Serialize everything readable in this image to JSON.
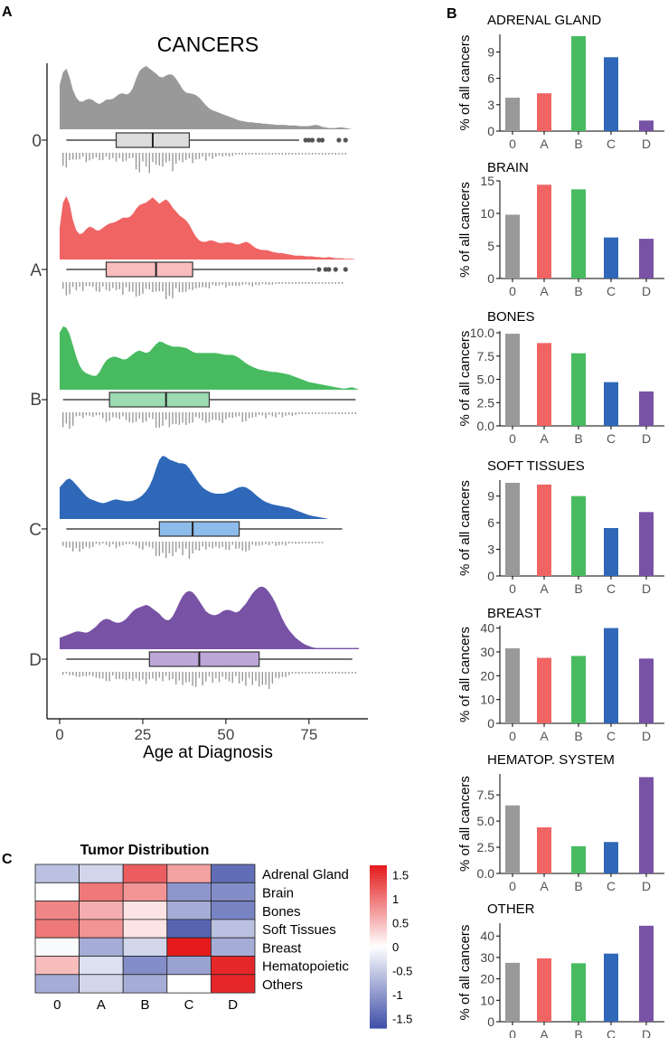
{
  "panels": {
    "a": "A",
    "b": "B",
    "c": "C"
  },
  "colors": {
    "0": "#999999",
    "A": "#F06464",
    "B": "#48BB60",
    "C": "#2F68B8",
    "D": "#7752A5",
    "box0": "#DCDCDC",
    "boxA": "#F9BDBD",
    "boxB": "#9DDBB3",
    "boxC": "#8DBBEA",
    "boxD": "#BDA6D8"
  },
  "chart_data": [
    {
      "id": "raincloud",
      "type": "raincloud",
      "title": "CANCERS",
      "xlabel": "Age at Diagnosis",
      "xlim": [
        -2,
        92
      ],
      "xticks": [
        0,
        25,
        50,
        75
      ],
      "groups": [
        "0",
        "A",
        "B",
        "C",
        "D"
      ],
      "density_x": [
        0,
        1,
        2,
        3,
        4,
        5,
        6,
        7,
        8,
        9,
        10,
        11,
        12,
        13,
        14,
        15,
        16,
        17,
        18,
        19,
        20,
        21,
        22,
        23,
        24,
        25,
        26,
        27,
        28,
        29,
        30,
        31,
        32,
        33,
        34,
        35,
        36,
        37,
        38,
        39,
        40,
        41,
        42,
        43,
        44,
        45,
        46,
        47,
        48,
        49,
        50,
        51,
        52,
        53,
        54,
        55,
        56,
        57,
        58,
        59,
        60,
        61,
        62,
        63,
        64,
        65,
        66,
        67,
        68,
        69,
        70,
        71,
        72,
        73,
        74,
        75,
        76,
        77,
        78,
        79,
        80,
        81,
        82,
        83,
        84,
        85,
        86,
        87,
        88,
        89,
        90
      ],
      "series": [
        {
          "name": "0",
          "outliers": [
            74,
            75,
            76,
            78,
            79,
            84,
            86
          ],
          "box": {
            "q1": 17,
            "median": 28,
            "q3": 39,
            "whisker_low": 2,
            "whisker_high": 72
          },
          "density": [
            0.7,
            0.9,
            0.96,
            0.82,
            0.62,
            0.5,
            0.44,
            0.44,
            0.47,
            0.48,
            0.46,
            0.42,
            0.4,
            0.43,
            0.47,
            0.47,
            0.48,
            0.52,
            0.56,
            0.57,
            0.55,
            0.57,
            0.65,
            0.8,
            0.92,
            0.97,
            1.0,
            0.96,
            0.92,
            0.88,
            0.83,
            0.82,
            0.85,
            0.87,
            0.86,
            0.8,
            0.72,
            0.63,
            0.58,
            0.57,
            0.56,
            0.54,
            0.5,
            0.44,
            0.38,
            0.33,
            0.3,
            0.28,
            0.26,
            0.24,
            0.22,
            0.2,
            0.18,
            0.16,
            0.14,
            0.13,
            0.12,
            0.11,
            0.11,
            0.1,
            0.1,
            0.09,
            0.09,
            0.08,
            0.08,
            0.07,
            0.07,
            0.07,
            0.07,
            0.06,
            0.06,
            0.06,
            0.05,
            0.05,
            0.05,
            0.05,
            0.06,
            0.07,
            0.06,
            0.04,
            0.03,
            0.02,
            0.02,
            0.02,
            0.03,
            0.03,
            0.02,
            0.01,
            0.0,
            0.0,
            0.0
          ]
        },
        {
          "name": "A",
          "outliers": [
            78,
            80,
            81,
            83,
            86
          ],
          "box": {
            "q1": 14,
            "median": 29,
            "q3": 40,
            "whisker_low": 2,
            "whisker_high": 77
          },
          "density": [
            0.5,
            0.9,
            1.0,
            0.88,
            0.62,
            0.46,
            0.4,
            0.42,
            0.48,
            0.52,
            0.5,
            0.46,
            0.46,
            0.5,
            0.54,
            0.57,
            0.58,
            0.6,
            0.63,
            0.66,
            0.66,
            0.67,
            0.72,
            0.8,
            0.86,
            0.88,
            0.9,
            0.94,
            0.98,
            0.93,
            0.88,
            0.92,
            0.95,
            0.9,
            0.82,
            0.76,
            0.7,
            0.66,
            0.62,
            0.55,
            0.45,
            0.36,
            0.3,
            0.28,
            0.28,
            0.3,
            0.3,
            0.28,
            0.26,
            0.26,
            0.27,
            0.27,
            0.26,
            0.24,
            0.24,
            0.26,
            0.28,
            0.26,
            0.22,
            0.18,
            0.16,
            0.15,
            0.15,
            0.14,
            0.12,
            0.11,
            0.1,
            0.1,
            0.09,
            0.08,
            0.07,
            0.06,
            0.06,
            0.06,
            0.05,
            0.05,
            0.05,
            0.04,
            0.04,
            0.03,
            0.03,
            0.04,
            0.03,
            0.02,
            0.02,
            0.02,
            0.01,
            0.01,
            0.01,
            0.0,
            0.0
          ]
        },
        {
          "name": "B",
          "outliers": [],
          "box": {
            "q1": 15,
            "median": 32,
            "q3": 45,
            "whisker_low": 1,
            "whisker_high": 89
          },
          "density": [
            0.9,
            1.0,
            0.98,
            0.88,
            0.7,
            0.52,
            0.38,
            0.3,
            0.26,
            0.24,
            0.22,
            0.22,
            0.28,
            0.38,
            0.46,
            0.5,
            0.52,
            0.52,
            0.5,
            0.48,
            0.48,
            0.52,
            0.56,
            0.6,
            0.62,
            0.6,
            0.58,
            0.6,
            0.66,
            0.72,
            0.76,
            0.75,
            0.72,
            0.7,
            0.68,
            0.68,
            0.68,
            0.67,
            0.66,
            0.63,
            0.6,
            0.58,
            0.58,
            0.58,
            0.58,
            0.58,
            0.58,
            0.58,
            0.57,
            0.56,
            0.55,
            0.55,
            0.55,
            0.53,
            0.5,
            0.46,
            0.42,
            0.39,
            0.36,
            0.34,
            0.32,
            0.31,
            0.3,
            0.29,
            0.28,
            0.28,
            0.27,
            0.26,
            0.25,
            0.24,
            0.22,
            0.2,
            0.18,
            0.16,
            0.14,
            0.12,
            0.11,
            0.1,
            0.09,
            0.08,
            0.07,
            0.06,
            0.05,
            0.04,
            0.03,
            0.02,
            0.02,
            0.03,
            0.04,
            0.02,
            0.0
          ]
        },
        {
          "name": "C",
          "outliers": [],
          "box": {
            "q1": 30,
            "median": 40,
            "q3": 54,
            "whisker_low": 2,
            "whisker_high": 85
          },
          "density": [
            0.5,
            0.56,
            0.62,
            0.64,
            0.6,
            0.54,
            0.48,
            0.42,
            0.36,
            0.32,
            0.3,
            0.28,
            0.26,
            0.25,
            0.26,
            0.28,
            0.3,
            0.31,
            0.3,
            0.29,
            0.28,
            0.28,
            0.29,
            0.31,
            0.34,
            0.38,
            0.44,
            0.52,
            0.64,
            0.8,
            0.94,
            1.0,
            0.98,
            0.94,
            0.92,
            0.9,
            0.88,
            0.88,
            0.86,
            0.8,
            0.72,
            0.64,
            0.56,
            0.5,
            0.46,
            0.43,
            0.41,
            0.4,
            0.4,
            0.4,
            0.41,
            0.43,
            0.45,
            0.48,
            0.5,
            0.51,
            0.5,
            0.47,
            0.43,
            0.38,
            0.34,
            0.3,
            0.27,
            0.25,
            0.23,
            0.22,
            0.21,
            0.2,
            0.19,
            0.18,
            0.16,
            0.14,
            0.12,
            0.1,
            0.08,
            0.06,
            0.05,
            0.04,
            0.03,
            0.02,
            0.01,
            0.0,
            0.0,
            0.0,
            0.0,
            0.0,
            0.0,
            0.0,
            0.0,
            0.0,
            0.0
          ]
        },
        {
          "name": "D",
          "outliers": [],
          "box": {
            "q1": 27,
            "median": 42,
            "q3": 60,
            "whisker_low": 2,
            "whisker_high": 88
          },
          "density": [
            0.18,
            0.2,
            0.22,
            0.24,
            0.26,
            0.28,
            0.28,
            0.27,
            0.26,
            0.28,
            0.32,
            0.36,
            0.42,
            0.46,
            0.48,
            0.47,
            0.44,
            0.42,
            0.42,
            0.44,
            0.48,
            0.54,
            0.6,
            0.64,
            0.66,
            0.68,
            0.7,
            0.68,
            0.64,
            0.6,
            0.56,
            0.5,
            0.46,
            0.46,
            0.52,
            0.62,
            0.74,
            0.84,
            0.9,
            0.92,
            0.9,
            0.84,
            0.76,
            0.68,
            0.6,
            0.56,
            0.54,
            0.54,
            0.56,
            0.6,
            0.62,
            0.62,
            0.6,
            0.58,
            0.6,
            0.66,
            0.72,
            0.8,
            0.88,
            0.94,
            0.98,
            0.99,
            0.96,
            0.9,
            0.82,
            0.72,
            0.6,
            0.48,
            0.38,
            0.3,
            0.24,
            0.18,
            0.14,
            0.1,
            0.07,
            0.05,
            0.03,
            0.02,
            0.02,
            0.02,
            0.02,
            0.02,
            0.02,
            0.02,
            0.02,
            0.02,
            0.02,
            0.02,
            0.02,
            0.02,
            0.02
          ]
        }
      ]
    },
    {
      "id": "bars",
      "type": "bar",
      "ylabel": "% of all cancers",
      "categories": [
        "0",
        "A",
        "B",
        "C",
        "D"
      ],
      "panels": [
        {
          "title": "ADRENAL GLAND",
          "values": [
            3.8,
            4.3,
            10.8,
            8.4,
            1.2
          ],
          "ylim": [
            0,
            11
          ],
          "yticks": [
            "0",
            "3",
            "6",
            "9"
          ],
          "ytick_values": [
            0,
            3,
            6,
            9
          ]
        },
        {
          "title": "BRAIN",
          "values": [
            9.8,
            14.4,
            13.7,
            6.3,
            6.1
          ],
          "ylim": [
            0,
            15
          ],
          "yticks": [
            "0",
            "5",
            "10",
            "15"
          ],
          "ytick_values": [
            0,
            5,
            10,
            15
          ]
        },
        {
          "title": "BONES",
          "values": [
            9.9,
            8.9,
            7.8,
            4.7,
            3.7
          ],
          "ylim": [
            0,
            10.2
          ],
          "yticks": [
            "0.0",
            "2.5",
            "5.0",
            "7.5",
            "10.0"
          ],
          "ytick_values": [
            0,
            2.5,
            5,
            7.5,
            10
          ]
        },
        {
          "title": "SOFT TISSUES",
          "values": [
            10.5,
            10.3,
            9.0,
            5.4,
            7.2
          ],
          "ylim": [
            0,
            10.8
          ],
          "yticks": [
            "0",
            "3",
            "6",
            "9"
          ],
          "ytick_values": [
            0,
            3,
            6,
            9
          ]
        },
        {
          "title": "BREAST",
          "values": [
            31.5,
            27.5,
            28.3,
            40.0,
            27.2
          ],
          "ylim": [
            0,
            41
          ],
          "yticks": [
            "0",
            "10",
            "20",
            "30",
            "40"
          ],
          "ytick_values": [
            0,
            10,
            20,
            30,
            40
          ]
        },
        {
          "title": "HEMATOP. SYSTEM",
          "values": [
            6.5,
            4.4,
            2.6,
            3.0,
            9.2
          ],
          "ylim": [
            0,
            9.5
          ],
          "yticks": [
            "0.0",
            "2.5",
            "5.0",
            "7.5"
          ],
          "ytick_values": [
            0,
            2.5,
            5,
            7.5
          ]
        },
        {
          "title": "OTHER",
          "values": [
            27.5,
            29.6,
            27.3,
            31.8,
            44.8
          ],
          "ylim": [
            0,
            46
          ],
          "yticks": [
            "0",
            "10",
            "20",
            "30",
            "40"
          ],
          "ytick_values": [
            0,
            10,
            20,
            30,
            40
          ]
        }
      ]
    },
    {
      "id": "heatmap",
      "type": "heatmap",
      "title": "Tumor Distribution",
      "columns": [
        "0",
        "A",
        "B",
        "C",
        "D"
      ],
      "rows": [
        "Adrenal Gland",
        "Brain",
        "Bones",
        "Soft Tissues",
        "Breast",
        "Hematopoietic",
        "Others"
      ],
      "values": [
        [
          -0.6,
          -0.4,
          1.2,
          0.7,
          -1.4
        ],
        [
          0.0,
          1.0,
          0.8,
          -1.0,
          -1.1
        ],
        [
          0.9,
          0.6,
          0.2,
          -0.8,
          -1.2
        ],
        [
          1.0,
          0.8,
          0.2,
          -1.5,
          -0.6
        ],
        [
          -0.05,
          -0.8,
          -0.4,
          1.7,
          -0.8
        ],
        [
          0.5,
          -0.3,
          -1.1,
          -0.9,
          1.6
        ],
        [
          -0.8,
          -0.4,
          -0.8,
          0.0,
          1.6
        ]
      ],
      "legend_ticks": [
        "1.5",
        "1",
        "0.5",
        "0",
        "-0.5",
        "-1",
        "-1.5"
      ],
      "legend_tick_values": [
        1.5,
        1,
        0.5,
        0,
        -0.5,
        -1,
        -1.5
      ],
      "scale": [
        -1.7,
        1.7
      ]
    }
  ]
}
